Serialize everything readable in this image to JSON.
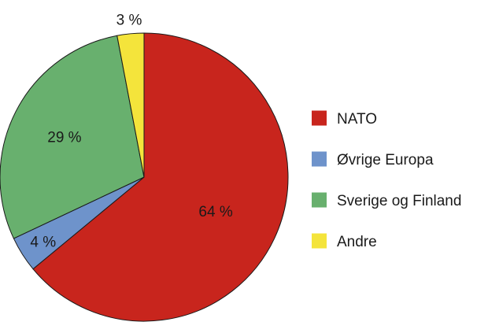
{
  "chart_data": {
    "type": "pie",
    "categories": [
      "NATO",
      "Øvrige Europa",
      "Sverige og Finland",
      "Andre"
    ],
    "values": [
      64,
      4,
      29,
      3
    ],
    "data_labels": [
      "64 %",
      "4 %",
      "29 %",
      "3 %"
    ],
    "colors": [
      "#c8251d",
      "#6e93cb",
      "#68b06e",
      "#f4e43b"
    ],
    "start": "12 o'clock",
    "direction": "clockwise",
    "legend_position": "right"
  }
}
